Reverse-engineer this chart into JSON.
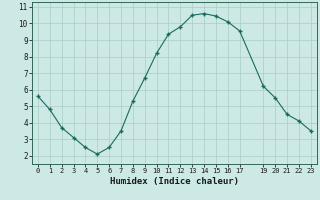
{
  "x": [
    0,
    1,
    2,
    3,
    4,
    5,
    6,
    7,
    8,
    9,
    10,
    11,
    12,
    13,
    14,
    15,
    16,
    17,
    19,
    20,
    21,
    22,
    23
  ],
  "y": [
    5.6,
    4.8,
    3.7,
    3.1,
    2.5,
    2.1,
    2.5,
    3.5,
    5.3,
    6.7,
    8.2,
    9.35,
    9.8,
    10.5,
    10.6,
    10.45,
    10.1,
    9.55,
    6.2,
    5.5,
    4.5,
    4.1,
    3.5
  ],
  "xlim": [
    -0.5,
    23.5
  ],
  "ylim": [
    1.5,
    11.3
  ],
  "xticks": [
    0,
    1,
    2,
    3,
    4,
    5,
    6,
    7,
    8,
    9,
    10,
    11,
    12,
    13,
    14,
    15,
    16,
    17,
    19,
    20,
    21,
    22,
    23
  ],
  "yticks": [
    2,
    3,
    4,
    5,
    6,
    7,
    8,
    9,
    10,
    11
  ],
  "xlabel": "Humidex (Indice chaleur)",
  "line_color": "#1a6b5a",
  "marker": "+",
  "bg_color": "#cce9e5",
  "grid_color": "#aaccca",
  "spine_color": "#336655",
  "tick_color": "#1a1a1a",
  "xlabel_fontsize": 6.5,
  "tick_fontsize_x": 5.0,
  "tick_fontsize_y": 5.5
}
